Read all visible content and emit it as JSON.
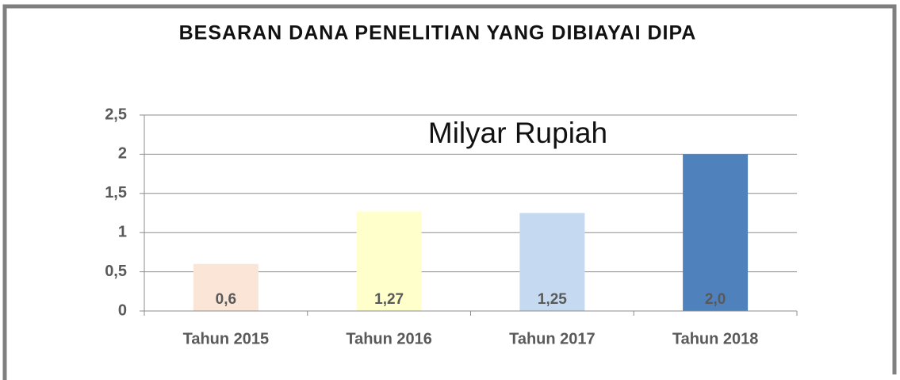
{
  "chart_data": {
    "type": "bar",
    "title": "BESARAN DANA PENELITIAN YANG DIBIAYAI DIPA",
    "annotation": "Milyar Rupiah",
    "categories": [
      "Tahun 2015",
      "Tahun 2016",
      "Tahun 2017",
      "Tahun 2018"
    ],
    "values": [
      0.6,
      1.27,
      1.25,
      2.0
    ],
    "value_labels": [
      "0,6",
      "1,27",
      "1,25",
      "2,0"
    ],
    "colors": [
      "#fbe5d6",
      "#ffffcc",
      "#c5d9f0",
      "#4f81bd"
    ],
    "ylim": [
      0,
      2.5
    ],
    "yticks": [
      0,
      {
        "value": 0.5,
        "label": "0,5"
      },
      1,
      {
        "value": 1.5,
        "label": "1,5"
      },
      2,
      {
        "value": 2.5,
        "label": "2,5"
      }
    ],
    "grid": true
  }
}
